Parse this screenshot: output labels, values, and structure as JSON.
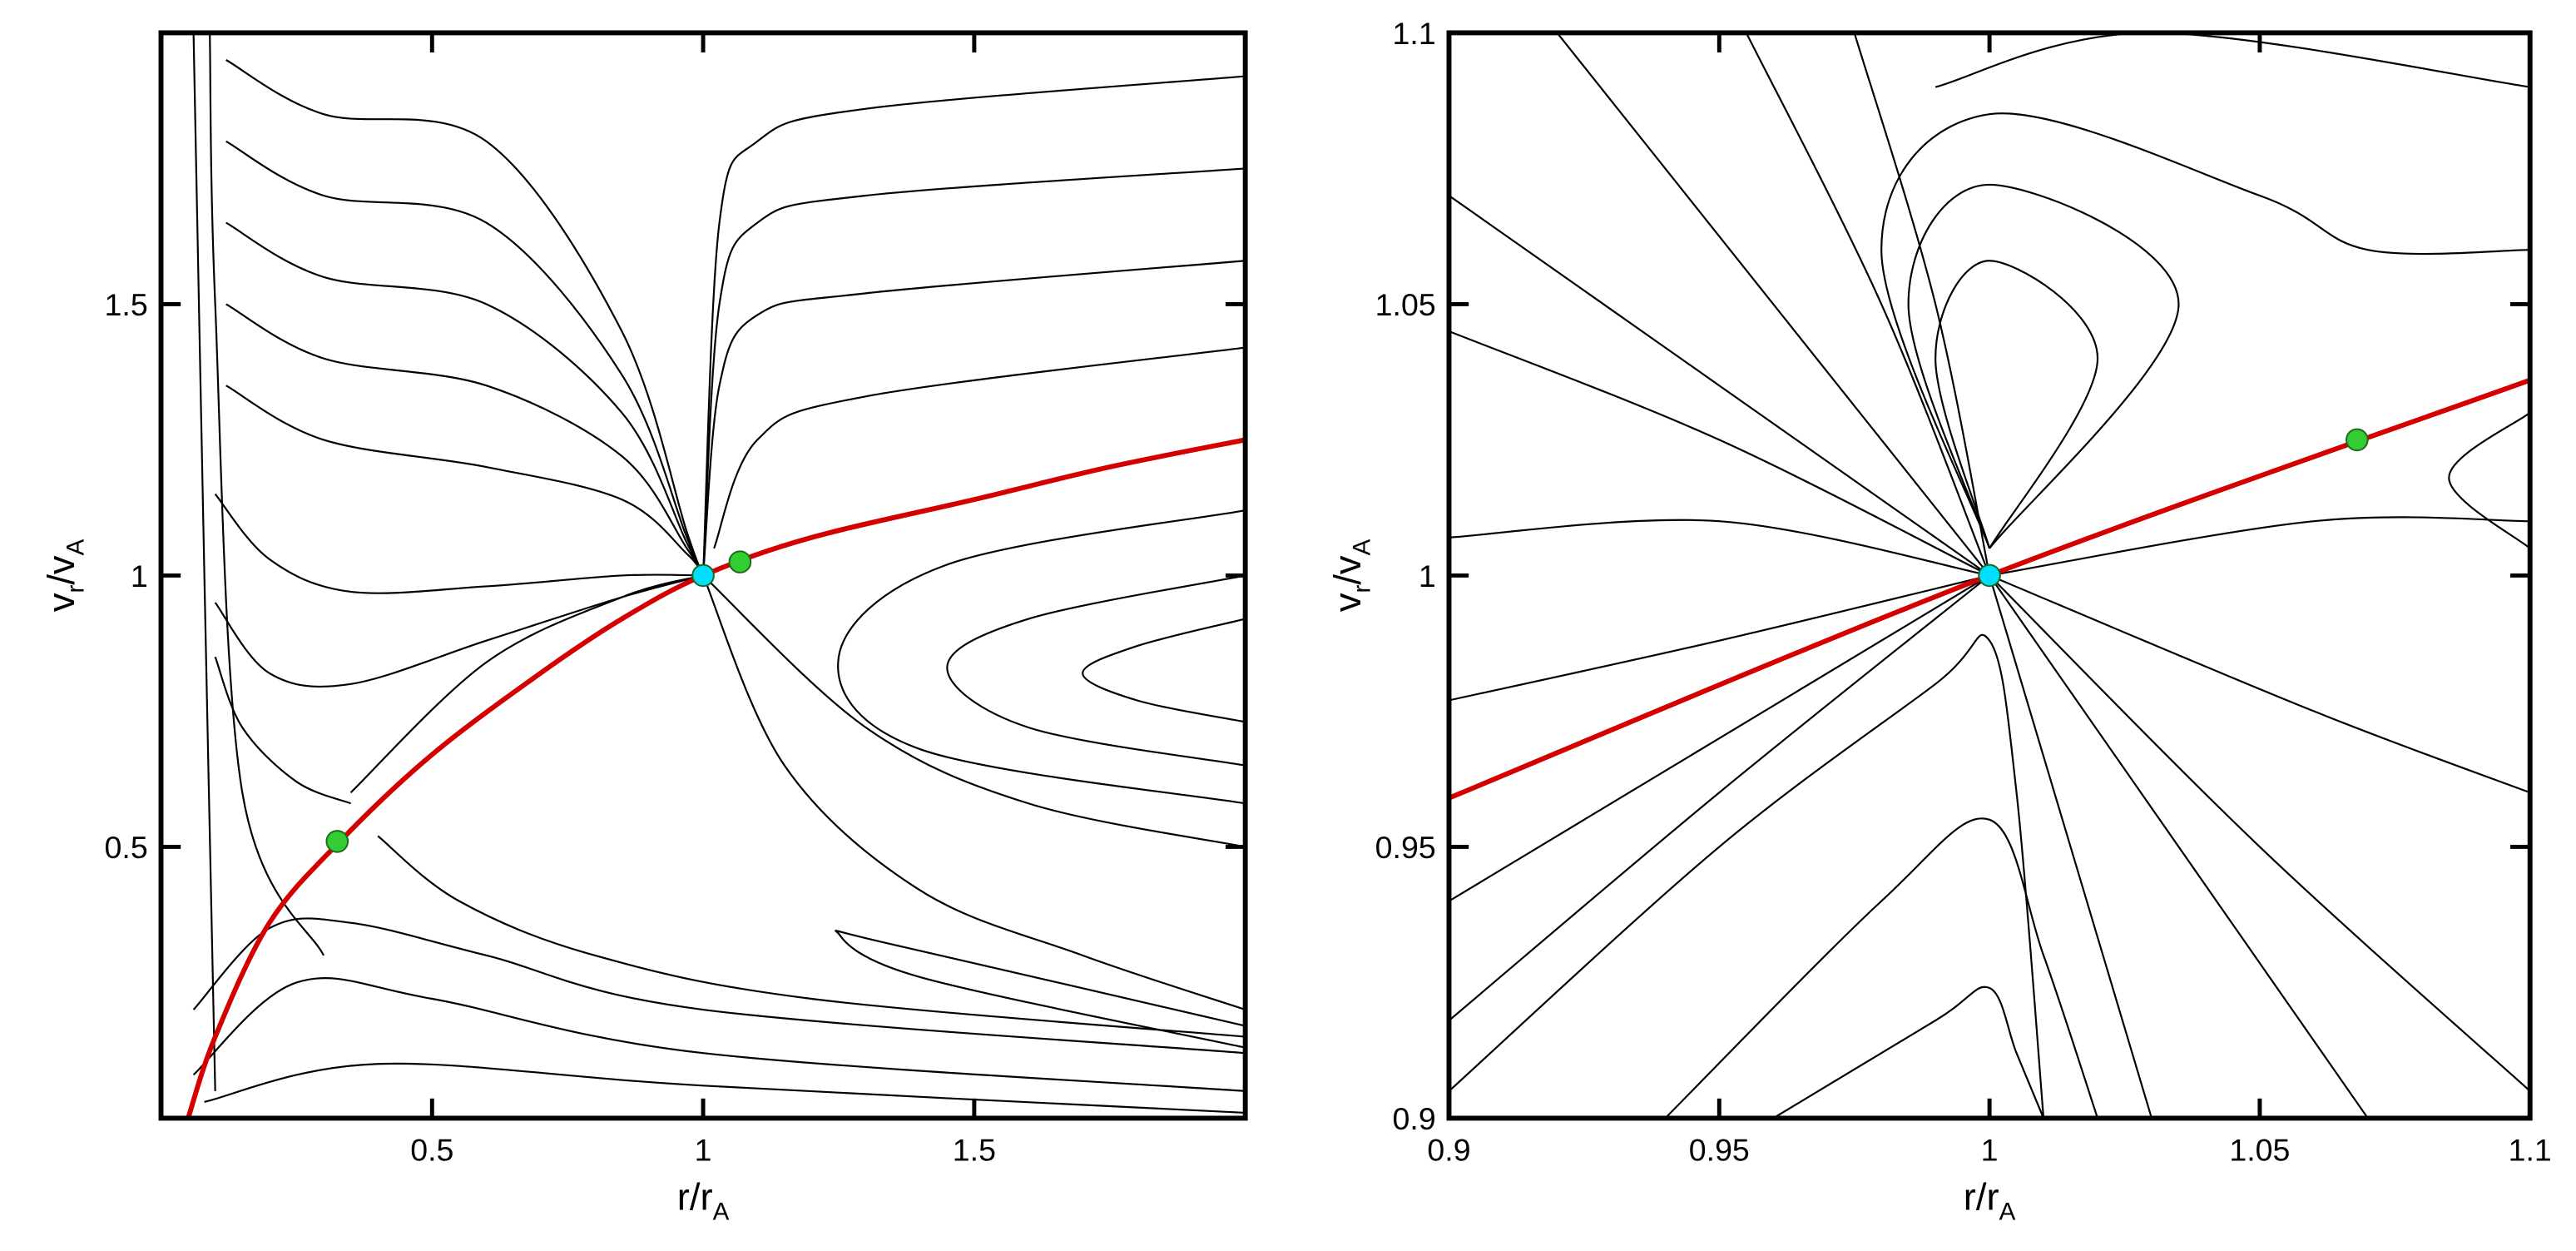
{
  "chart_data": [
    {
      "type": "line",
      "xlabel": [
        "r/r",
        "A"
      ],
      "ylabel": [
        "v",
        "r",
        "/v",
        "A"
      ],
      "xlim": [
        0,
        2
      ],
      "ylim": [
        0,
        2
      ],
      "xticks": [
        0.5,
        1,
        1.5
      ],
      "yticks": [
        0.5,
        1,
        1.5
      ],
      "series": [
        {
          "color": "#000000",
          "x": [
            0.12,
            0.3,
            0.6,
            0.85,
            0.97,
            1.0
          ],
          "values": [
            1.95,
            1.85,
            1.8,
            1.45,
            1.08,
            1.0
          ]
        },
        {
          "color": "#000000",
          "x": [
            0.12,
            0.3,
            0.6,
            0.85,
            0.97,
            1.0
          ],
          "values": [
            1.8,
            1.7,
            1.65,
            1.37,
            1.07,
            1.0
          ]
        },
        {
          "color": "#000000",
          "x": [
            0.12,
            0.3,
            0.6,
            0.85,
            0.97,
            1.0
          ],
          "values": [
            1.65,
            1.55,
            1.5,
            1.3,
            1.06,
            1.0
          ]
        },
        {
          "color": "#000000",
          "x": [
            0.12,
            0.3,
            0.6,
            0.85,
            0.97,
            1.0
          ],
          "values": [
            1.5,
            1.4,
            1.35,
            1.22,
            1.05,
            1.0
          ]
        },
        {
          "color": "#000000",
          "x": [
            0.12,
            0.3,
            0.6,
            0.85,
            0.97,
            1.0
          ],
          "values": [
            1.35,
            1.25,
            1.2,
            1.14,
            1.04,
            1.0
          ]
        },
        {
          "color": "#000000",
          "x": [
            0.1,
            0.2,
            0.35,
            0.6,
            0.85,
            1.0
          ],
          "values": [
            1.15,
            1.03,
            0.97,
            0.98,
            1.0,
            1.0
          ]
        },
        {
          "color": "#000000",
          "x": [
            0.1,
            0.2,
            0.35,
            0.6,
            0.85,
            1.0
          ],
          "values": [
            0.95,
            0.82,
            0.8,
            0.88,
            0.96,
            1.0
          ]
        },
        {
          "color": "#000000",
          "x": [
            0.1,
            0.15,
            0.25,
            0.35
          ],
          "values": [
            0.85,
            0.72,
            0.62,
            0.58
          ]
        },
        {
          "color": "#000000",
          "x": [
            0.06,
            0.2,
            0.35,
            0.6,
            1.0,
            2.0
          ],
          "values": [
            0.2,
            0.35,
            0.36,
            0.3,
            0.2,
            0.12
          ]
        },
        {
          "color": "#000000",
          "x": [
            0.06,
            0.25,
            0.5,
            1.0,
            2.0
          ],
          "values": [
            0.08,
            0.25,
            0.22,
            0.12,
            0.05
          ]
        },
        {
          "color": "#000000",
          "x": [
            0.08,
            0.4,
            1.0,
            2.0
          ],
          "values": [
            0.03,
            0.1,
            0.06,
            0.01
          ]
        },
        {
          "color": "#000000",
          "x": [
            0.06,
            0.08,
            0.1
          ],
          "values": [
            2.0,
            1.0,
            0.05
          ]
        },
        {
          "color": "#000000",
          "x": [
            0.09,
            0.1,
            0.15,
            0.3
          ],
          "values": [
            2.0,
            1.5,
            0.6,
            0.3
          ]
        },
        {
          "color": "#000000",
          "x": [
            1.0,
            1.03,
            1.1,
            1.3,
            2.0
          ],
          "values": [
            1.0,
            1.35,
            1.48,
            1.52,
            1.58
          ]
        },
        {
          "color": "#000000",
          "x": [
            1.0,
            1.03,
            1.1,
            1.3,
            2.0
          ],
          "values": [
            1.0,
            1.5,
            1.65,
            1.7,
            1.75
          ]
        },
        {
          "color": "#000000",
          "x": [
            1.0,
            1.03,
            1.1,
            1.3,
            2.0
          ],
          "values": [
            1.0,
            1.65,
            1.8,
            1.86,
            1.92
          ]
        },
        {
          "color": "#000000",
          "x": [
            1.02,
            1.1,
            1.3,
            2.0
          ],
          "values": [
            1.05,
            1.25,
            1.33,
            1.42
          ]
        },
        {
          "color": "#000000",
          "x": [
            2.0,
            1.45,
            1.25,
            1.4,
            2.0
          ],
          "values": [
            1.12,
            1.02,
            0.85,
            0.68,
            0.58
          ]
        },
        {
          "color": "#000000",
          "x": [
            2.0,
            1.6,
            1.45,
            1.6,
            2.0
          ],
          "values": [
            1.0,
            0.92,
            0.83,
            0.72,
            0.65
          ]
        },
        {
          "color": "#000000",
          "x": [
            2.0,
            1.8,
            1.7,
            1.8,
            2.0
          ],
          "values": [
            0.92,
            0.87,
            0.82,
            0.77,
            0.73
          ]
        },
        {
          "color": "#000000",
          "x": [
            1.0,
            1.3,
            1.6,
            2.0
          ],
          "values": [
            1.0,
            0.72,
            0.58,
            0.5
          ]
        },
        {
          "color": "#000000",
          "x": [
            1.0,
            1.15,
            1.4,
            1.7,
            2.0
          ],
          "values": [
            1.0,
            0.65,
            0.42,
            0.3,
            0.2
          ]
        },
        {
          "color": "#000000",
          "x": [
            0.35,
            0.6,
            0.85,
            1.0
          ],
          "values": [
            0.6,
            0.84,
            0.96,
            1.0
          ]
        },
        {
          "color": "#000000",
          "x": [
            0.4,
            0.55,
            0.8,
            1.2,
            2.0
          ],
          "values": [
            0.52,
            0.4,
            0.3,
            0.22,
            0.15
          ]
        },
        {
          "color": "#000000",
          "x": [
            2.0,
            1.4,
            1.25,
            1.35,
            2.0
          ],
          "values": [
            0.13,
            0.26,
            0.34,
            0.32,
            0.17
          ]
        }
      ],
      "critical": {
        "color": "#d40000",
        "x": [
          0.05,
          0.1,
          0.2,
          0.33,
          0.5,
          0.7,
          0.85,
          1.0,
          1.2,
          1.5,
          1.75,
          2.0
        ],
        "values": [
          0,
          0.15,
          0.36,
          0.51,
          0.67,
          0.82,
          0.92,
          1.0,
          1.07,
          1.14,
          1.2,
          1.25
        ]
      },
      "markers": {
        "x": [
          0.325,
          1.068,
          1.0
        ],
        "values": [
          0.51,
          1.025,
          1.0
        ],
        "colors": [
          "#33cc33",
          "#33cc33",
          "#00ddff"
        ]
      }
    },
    {
      "type": "line",
      "xlabel": [
        "r/r",
        "A"
      ],
      "ylabel": [
        "v",
        "r",
        "/v",
        "A"
      ],
      "xlim": [
        0.9,
        1.1
      ],
      "ylim": [
        0.9,
        1.1
      ],
      "xticks": [
        0.9,
        0.95,
        1,
        1.05,
        1.1
      ],
      "yticks": [
        0.9,
        0.95,
        1,
        1.05,
        1.1
      ],
      "series": [
        {
          "color": "#000000",
          "x": [
            0.9,
            0.95,
            1.0
          ],
          "values": [
            1.07,
            1.035,
            1.0
          ]
        },
        {
          "color": "#000000",
          "x": [
            0.9,
            0.95,
            1.0
          ],
          "values": [
            1.045,
            1.025,
            1.0
          ]
        },
        {
          "color": "#000000",
          "x": [
            0.9,
            0.95,
            1.0
          ],
          "values": [
            1.007,
            1.01,
            1.0
          ]
        },
        {
          "color": "#000000",
          "x": [
            0.9,
            0.95,
            1.0
          ],
          "values": [
            0.977,
            0.988,
            1.0
          ]
        },
        {
          "color": "#000000",
          "x": [
            0.9,
            0.95,
            1.0
          ],
          "values": [
            0.94,
            0.97,
            1.0
          ]
        },
        {
          "color": "#000000",
          "x": [
            0.9,
            0.95,
            1.0
          ],
          "values": [
            0.918,
            0.96,
            1.0
          ]
        },
        {
          "color": "#000000",
          "x": [
            0.92,
            0.96,
            1.0
          ],
          "values": [
            1.1,
            1.05,
            1.0
          ]
        },
        {
          "color": "#000000",
          "x": [
            0.955,
            0.98,
            1.0
          ],
          "values": [
            1.1,
            1.05,
            1.0
          ]
        },
        {
          "color": "#000000",
          "x": [
            0.975,
            0.99,
            1.0
          ],
          "values": [
            1.1,
            1.05,
            1.0
          ]
        },
        {
          "color": "#000000",
          "x": [
            1.0,
            1.015,
            1.03
          ],
          "values": [
            1.0,
            0.95,
            0.9
          ]
        },
        {
          "color": "#000000",
          "x": [
            1.0,
            1.035,
            1.07
          ],
          "values": [
            1.0,
            0.95,
            0.9
          ]
        },
        {
          "color": "#000000",
          "x": [
            1.0,
            1.05,
            1.1
          ],
          "values": [
            1.0,
            0.95,
            0.905
          ]
        },
        {
          "color": "#000000",
          "x": [
            1.0,
            1.06,
            1.1
          ],
          "values": [
            1.0,
            0.975,
            0.96
          ]
        },
        {
          "color": "#000000",
          "x": [
            0.94,
            0.98,
            1.0,
            1.01,
            1.02
          ],
          "values": [
            0.9,
            0.94,
            0.955,
            0.93,
            0.9
          ]
        },
        {
          "color": "#000000",
          "x": [
            0.96,
            0.99,
            1.0,
            1.005,
            1.01
          ],
          "values": [
            0.9,
            0.918,
            0.924,
            0.912,
            0.9
          ]
        },
        {
          "color": "#000000",
          "x": [
            0.9,
            0.95,
            0.99,
            1.0,
            1.005,
            1.01
          ],
          "values": [
            0.905,
            0.95,
            0.98,
            0.988,
            0.96,
            0.9
          ]
        },
        {
          "color": "#000000",
          "x": [
            1.0,
            0.99,
            1.0,
            1.02,
            1.0
          ],
          "values": [
            1.005,
            1.04,
            1.058,
            1.04,
            1.005
          ]
        },
        {
          "color": "#000000",
          "x": [
            1.0,
            0.985,
            1.0,
            1.035,
            1.0
          ],
          "values": [
            1.005,
            1.05,
            1.072,
            1.05,
            1.005
          ]
        },
        {
          "color": "#000000",
          "x": [
            1.0,
            0.98,
            1.0,
            1.05,
            1.07,
            1.1
          ],
          "values": [
            1.005,
            1.06,
            1.085,
            1.07,
            1.06,
            1.06
          ]
        },
        {
          "color": "#000000",
          "x": [
            0.99,
            1.03,
            1.1
          ],
          "values": [
            1.09,
            1.1,
            1.09
          ]
        },
        {
          "color": "#000000",
          "x": [
            1.1,
            1.085,
            1.1
          ],
          "values": [
            1.03,
            1.018,
            1.005
          ]
        },
        {
          "color": "#000000",
          "x": [
            1.0,
            1.06,
            1.1
          ],
          "values": [
            1.0,
            1.01,
            1.01
          ]
        }
      ],
      "critical": {
        "color": "#d40000",
        "x": [
          0.9,
          1.0,
          1.1
        ],
        "values": [
          0.959,
          1.0,
          1.036
        ]
      },
      "markers": {
        "x": [
          1.068,
          1.0
        ],
        "values": [
          1.025,
          1.0
        ],
        "colors": [
          "#33cc33",
          "#00ddff"
        ]
      }
    }
  ]
}
